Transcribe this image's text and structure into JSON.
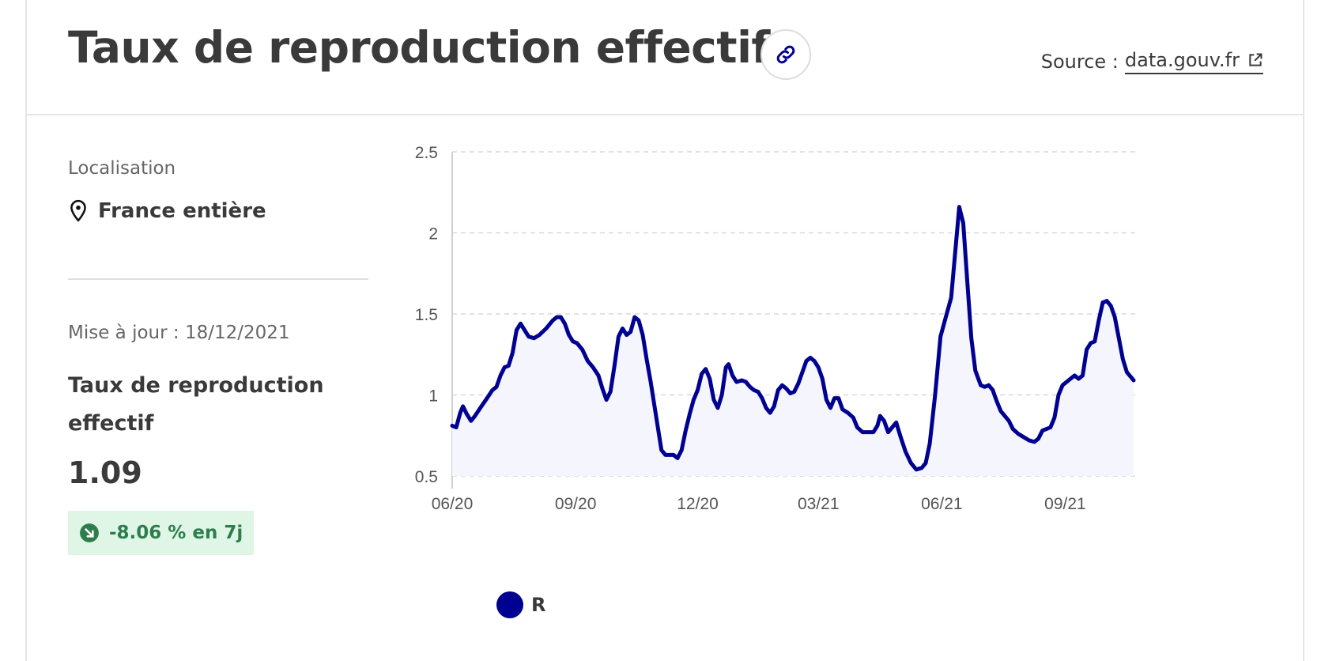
{
  "header": {
    "title": "Taux de reproduction effectif",
    "source_prefix": "Source :",
    "source_link": "data.gouv.fr"
  },
  "icons": {
    "link": "link-icon",
    "external": "external-link-icon",
    "location": "map-pin-icon",
    "trend": "arrow-down-right-circle-icon"
  },
  "panel": {
    "location_label": "Localisation",
    "location_value": "France entière",
    "update_text": "Mise à jour : 18/12/2021",
    "metric_name": "Taux de reproduction effectif",
    "metric_value": "1.09",
    "change_text": "-8.06 % en 7j"
  },
  "colors": {
    "series": "#000091",
    "area": "#f5f5fe",
    "badge_bg": "#dff6e6",
    "badge_text": "#2e7d4c"
  },
  "chart_data": {
    "type": "area",
    "title": "",
    "xlabel": "",
    "ylabel": "",
    "ylim": [
      0.5,
      2.5
    ],
    "yticks": [
      "2.5",
      "2",
      "1.5",
      "1",
      "0.5"
    ],
    "ytick_values": [
      2.5,
      2,
      1.5,
      1,
      0.5
    ],
    "xticks": [
      "06/20",
      "09/20",
      "12/20",
      "03/21",
      "06/21",
      "09/21"
    ],
    "xtick_values": [
      "2020-06-01",
      "2020-09-01",
      "2020-12-01",
      "2021-03-01",
      "2021-06-01",
      "2021-09-01"
    ],
    "grid": true,
    "legend": "bottom",
    "series": [
      {
        "name": "R",
        "points": [
          [
            "2020-06-01",
            0.81
          ],
          [
            "2020-06-04",
            0.8
          ],
          [
            "2020-06-07",
            0.89
          ],
          [
            "2020-06-09",
            0.93
          ],
          [
            "2020-06-12",
            0.88
          ],
          [
            "2020-06-15",
            0.84
          ],
          [
            "2020-06-18",
            0.87
          ],
          [
            "2020-06-22",
            0.92
          ],
          [
            "2020-06-27",
            0.98
          ],
          [
            "2020-07-01",
            1.03
          ],
          [
            "2020-07-04",
            1.05
          ],
          [
            "2020-07-07",
            1.12
          ],
          [
            "2020-07-10",
            1.17
          ],
          [
            "2020-07-13",
            1.18
          ],
          [
            "2020-07-16",
            1.26
          ],
          [
            "2020-07-19",
            1.4
          ],
          [
            "2020-07-22",
            1.44
          ],
          [
            "2020-07-25",
            1.4
          ],
          [
            "2020-07-28",
            1.36
          ],
          [
            "2020-08-01",
            1.35
          ],
          [
            "2020-08-05",
            1.37
          ],
          [
            "2020-08-10",
            1.41
          ],
          [
            "2020-08-15",
            1.46
          ],
          [
            "2020-08-18",
            1.48
          ],
          [
            "2020-08-21",
            1.48
          ],
          [
            "2020-08-24",
            1.44
          ],
          [
            "2020-08-27",
            1.37
          ],
          [
            "2020-08-30",
            1.33
          ],
          [
            "2020-09-02",
            1.32
          ],
          [
            "2020-09-06",
            1.28
          ],
          [
            "2020-09-10",
            1.21
          ],
          [
            "2020-09-14",
            1.17
          ],
          [
            "2020-09-18",
            1.12
          ],
          [
            "2020-09-21",
            1.04
          ],
          [
            "2020-09-24",
            0.97
          ],
          [
            "2020-09-27",
            1.02
          ],
          [
            "2020-09-30",
            1.18
          ],
          [
            "2020-10-03",
            1.36
          ],
          [
            "2020-10-06",
            1.41
          ],
          [
            "2020-10-09",
            1.37
          ],
          [
            "2020-10-12",
            1.39
          ],
          [
            "2020-10-15",
            1.48
          ],
          [
            "2020-10-18",
            1.46
          ],
          [
            "2020-10-21",
            1.37
          ],
          [
            "2020-10-24",
            1.22
          ],
          [
            "2020-10-27",
            1.08
          ],
          [
            "2020-10-31",
            0.87
          ],
          [
            "2020-11-04",
            0.66
          ],
          [
            "2020-11-07",
            0.63
          ],
          [
            "2020-11-10",
            0.63
          ],
          [
            "2020-11-13",
            0.63
          ],
          [
            "2020-11-16",
            0.61
          ],
          [
            "2020-11-19",
            0.66
          ],
          [
            "2020-11-22",
            0.78
          ],
          [
            "2020-11-25",
            0.88
          ],
          [
            "2020-11-28",
            0.97
          ],
          [
            "2020-12-01",
            1.03
          ],
          [
            "2020-12-04",
            1.13
          ],
          [
            "2020-12-07",
            1.16
          ],
          [
            "2020-12-10",
            1.1
          ],
          [
            "2020-12-13",
            0.97
          ],
          [
            "2020-12-16",
            0.92
          ],
          [
            "2020-12-19",
            1.0
          ],
          [
            "2020-12-22",
            1.17
          ],
          [
            "2020-12-24",
            1.19
          ],
          [
            "2020-12-27",
            1.12
          ],
          [
            "2020-12-30",
            1.08
          ],
          [
            "2021-01-03",
            1.09
          ],
          [
            "2021-01-06",
            1.08
          ],
          [
            "2021-01-09",
            1.05
          ],
          [
            "2021-01-12",
            1.03
          ],
          [
            "2021-01-15",
            1.02
          ],
          [
            "2021-01-18",
            0.98
          ],
          [
            "2021-01-21",
            0.92
          ],
          [
            "2021-01-24",
            0.89
          ],
          [
            "2021-01-27",
            0.93
          ],
          [
            "2021-01-30",
            1.03
          ],
          [
            "2021-02-02",
            1.06
          ],
          [
            "2021-02-05",
            1.04
          ],
          [
            "2021-02-08",
            1.01
          ],
          [
            "2021-02-11",
            1.02
          ],
          [
            "2021-02-14",
            1.07
          ],
          [
            "2021-02-17",
            1.14
          ],
          [
            "2021-02-20",
            1.21
          ],
          [
            "2021-02-23",
            1.23
          ],
          [
            "2021-02-26",
            1.21
          ],
          [
            "2021-03-01",
            1.17
          ],
          [
            "2021-03-04",
            1.1
          ],
          [
            "2021-03-07",
            0.97
          ],
          [
            "2021-03-10",
            0.92
          ],
          [
            "2021-03-13",
            0.98
          ],
          [
            "2021-03-16",
            0.98
          ],
          [
            "2021-03-19",
            0.91
          ],
          [
            "2021-03-23",
            0.89
          ],
          [
            "2021-03-27",
            0.86
          ],
          [
            "2021-03-30",
            0.8
          ],
          [
            "2021-04-03",
            0.77
          ],
          [
            "2021-04-07",
            0.77
          ],
          [
            "2021-04-11",
            0.77
          ],
          [
            "2021-04-14",
            0.81
          ],
          [
            "2021-04-16",
            0.87
          ],
          [
            "2021-04-19",
            0.84
          ],
          [
            "2021-04-22",
            0.77
          ],
          [
            "2021-04-25",
            0.8
          ],
          [
            "2021-04-28",
            0.83
          ],
          [
            "2021-05-01",
            0.75
          ],
          [
            "2021-05-05",
            0.65
          ],
          [
            "2021-05-09",
            0.58
          ],
          [
            "2021-05-13",
            0.54
          ],
          [
            "2021-05-17",
            0.55
          ],
          [
            "2021-05-20",
            0.58
          ],
          [
            "2021-05-23",
            0.7
          ],
          [
            "2021-05-27",
            1.0
          ],
          [
            "2021-05-31",
            1.36
          ],
          [
            "2021-06-04",
            1.48
          ],
          [
            "2021-06-08",
            1.6
          ],
          [
            "2021-06-11",
            1.88
          ],
          [
            "2021-06-14",
            2.16
          ],
          [
            "2021-06-17",
            2.06
          ],
          [
            "2021-06-20",
            1.7
          ],
          [
            "2021-06-23",
            1.35
          ],
          [
            "2021-06-26",
            1.15
          ],
          [
            "2021-06-30",
            1.06
          ],
          [
            "2021-07-03",
            1.05
          ],
          [
            "2021-07-06",
            1.06
          ],
          [
            "2021-07-09",
            1.03
          ],
          [
            "2021-07-12",
            0.96
          ],
          [
            "2021-07-15",
            0.9
          ],
          [
            "2021-07-18",
            0.87
          ],
          [
            "2021-07-21",
            0.84
          ],
          [
            "2021-07-24",
            0.79
          ],
          [
            "2021-07-28",
            0.76
          ],
          [
            "2021-08-01",
            0.74
          ],
          [
            "2021-08-05",
            0.72
          ],
          [
            "2021-08-09",
            0.71
          ],
          [
            "2021-08-12",
            0.73
          ],
          [
            "2021-08-15",
            0.78
          ],
          [
            "2021-08-18",
            0.79
          ],
          [
            "2021-08-21",
            0.8
          ],
          [
            "2021-08-24",
            0.86
          ],
          [
            "2021-08-27",
            1.0
          ],
          [
            "2021-08-30",
            1.06
          ],
          [
            "2021-09-02",
            1.08
          ],
          [
            "2021-09-05",
            1.1
          ],
          [
            "2021-09-08",
            1.12
          ],
          [
            "2021-09-11",
            1.1
          ],
          [
            "2021-09-14",
            1.12
          ],
          [
            "2021-09-17",
            1.28
          ],
          [
            "2021-09-20",
            1.32
          ],
          [
            "2021-09-23",
            1.33
          ],
          [
            "2021-09-26",
            1.46
          ],
          [
            "2021-09-29",
            1.57
          ],
          [
            "2021-10-02",
            1.58
          ],
          [
            "2021-10-05",
            1.55
          ],
          [
            "2021-10-08",
            1.48
          ],
          [
            "2021-10-11",
            1.35
          ],
          [
            "2021-10-14",
            1.22
          ],
          [
            "2021-10-17",
            1.14
          ],
          [
            "2021-10-20",
            1.11
          ],
          [
            "2021-10-22",
            1.09
          ]
        ]
      }
    ]
  }
}
